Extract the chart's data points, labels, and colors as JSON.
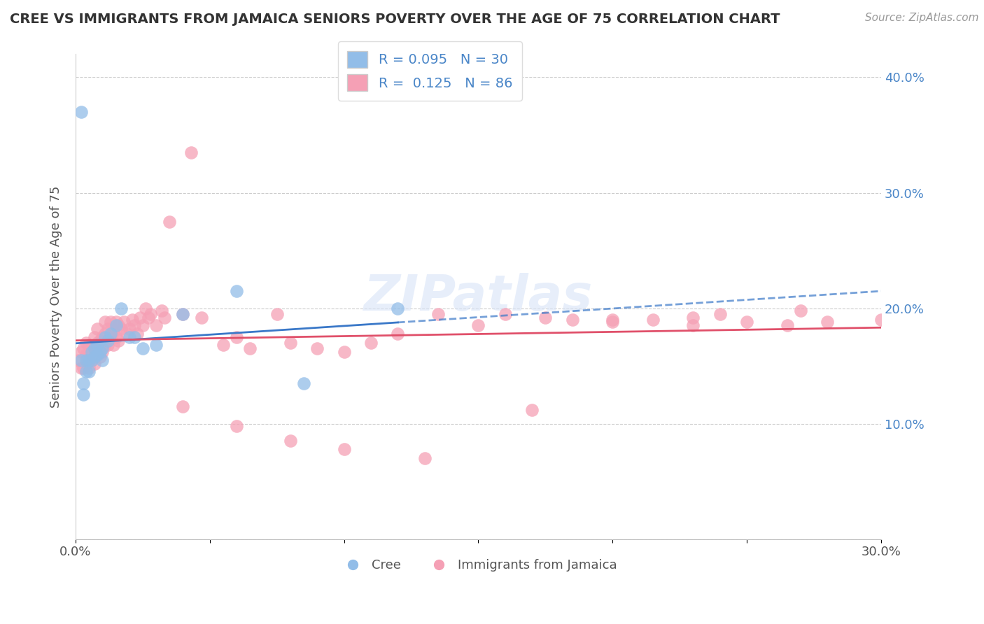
{
  "title": "CREE VS IMMIGRANTS FROM JAMAICA SENIORS POVERTY OVER THE AGE OF 75 CORRELATION CHART",
  "source": "Source: ZipAtlas.com",
  "ylabel": "Seniors Poverty Over the Age of 75",
  "xlim": [
    0.0,
    0.3
  ],
  "ylim": [
    0.0,
    0.42
  ],
  "x_ticks": [
    0.0,
    0.05,
    0.1,
    0.15,
    0.2,
    0.25,
    0.3
  ],
  "x_tick_labels": [
    "0.0%",
    "",
    "",
    "",
    "",
    "",
    "30.0%"
  ],
  "y_ticks": [
    0.0,
    0.1,
    0.2,
    0.3,
    0.4
  ],
  "y_tick_labels": [
    "",
    "10.0%",
    "20.0%",
    "30.0%",
    "40.0%"
  ],
  "legend_labels": [
    "Cree",
    "Immigrants from Jamaica"
  ],
  "cree_color": "#92bde8",
  "jamaica_color": "#f5a0b5",
  "cree_line_color": "#3a78c8",
  "jamaica_line_color": "#e0506a",
  "R_cree": 0.095,
  "N_cree": 30,
  "R_jamaica": 0.125,
  "N_jamaica": 86,
  "watermark": "ZIPatlas",
  "cree_points_x": [
    0.002,
    0.003,
    0.004,
    0.004,
    0.005,
    0.005,
    0.006,
    0.006,
    0.007,
    0.007,
    0.008,
    0.008,
    0.009,
    0.01,
    0.01,
    0.011,
    0.012,
    0.013,
    0.015,
    0.017,
    0.02,
    0.022,
    0.025,
    0.03,
    0.04,
    0.06,
    0.085,
    0.12,
    0.002,
    0.003
  ],
  "cree_points_y": [
    0.37,
    0.125,
    0.145,
    0.155,
    0.145,
    0.155,
    0.155,
    0.162,
    0.158,
    0.165,
    0.16,
    0.168,
    0.162,
    0.155,
    0.165,
    0.175,
    0.172,
    0.178,
    0.185,
    0.2,
    0.175,
    0.175,
    0.165,
    0.168,
    0.195,
    0.215,
    0.135,
    0.2,
    0.155,
    0.135
  ],
  "jamaica_points_x": [
    0.001,
    0.002,
    0.002,
    0.003,
    0.003,
    0.004,
    0.004,
    0.004,
    0.005,
    0.005,
    0.005,
    0.006,
    0.006,
    0.007,
    0.007,
    0.007,
    0.008,
    0.008,
    0.008,
    0.009,
    0.009,
    0.01,
    0.01,
    0.011,
    0.011,
    0.011,
    0.012,
    0.012,
    0.013,
    0.013,
    0.014,
    0.014,
    0.015,
    0.015,
    0.016,
    0.016,
    0.017,
    0.018,
    0.019,
    0.02,
    0.021,
    0.022,
    0.023,
    0.024,
    0.025,
    0.026,
    0.027,
    0.028,
    0.03,
    0.032,
    0.033,
    0.035,
    0.04,
    0.043,
    0.047,
    0.055,
    0.06,
    0.065,
    0.075,
    0.08,
    0.09,
    0.1,
    0.11,
    0.12,
    0.135,
    0.15,
    0.16,
    0.175,
    0.185,
    0.2,
    0.215,
    0.23,
    0.24,
    0.25,
    0.265,
    0.27,
    0.3,
    0.04,
    0.06,
    0.08,
    0.1,
    0.13,
    0.17,
    0.2,
    0.23,
    0.28
  ],
  "jamaica_points_y": [
    0.155,
    0.148,
    0.162,
    0.148,
    0.165,
    0.152,
    0.16,
    0.17,
    0.148,
    0.158,
    0.168,
    0.155,
    0.165,
    0.152,
    0.162,
    0.175,
    0.16,
    0.17,
    0.182,
    0.158,
    0.172,
    0.162,
    0.175,
    0.168,
    0.178,
    0.188,
    0.168,
    0.182,
    0.175,
    0.188,
    0.168,
    0.18,
    0.175,
    0.188,
    0.172,
    0.185,
    0.182,
    0.188,
    0.178,
    0.182,
    0.19,
    0.185,
    0.178,
    0.192,
    0.185,
    0.2,
    0.192,
    0.195,
    0.185,
    0.198,
    0.192,
    0.275,
    0.195,
    0.335,
    0.192,
    0.168,
    0.175,
    0.165,
    0.195,
    0.17,
    0.165,
    0.162,
    0.17,
    0.178,
    0.195,
    0.185,
    0.195,
    0.192,
    0.19,
    0.188,
    0.19,
    0.185,
    0.195,
    0.188,
    0.185,
    0.198,
    0.19,
    0.115,
    0.098,
    0.085,
    0.078,
    0.07,
    0.112,
    0.19,
    0.192,
    0.188
  ]
}
